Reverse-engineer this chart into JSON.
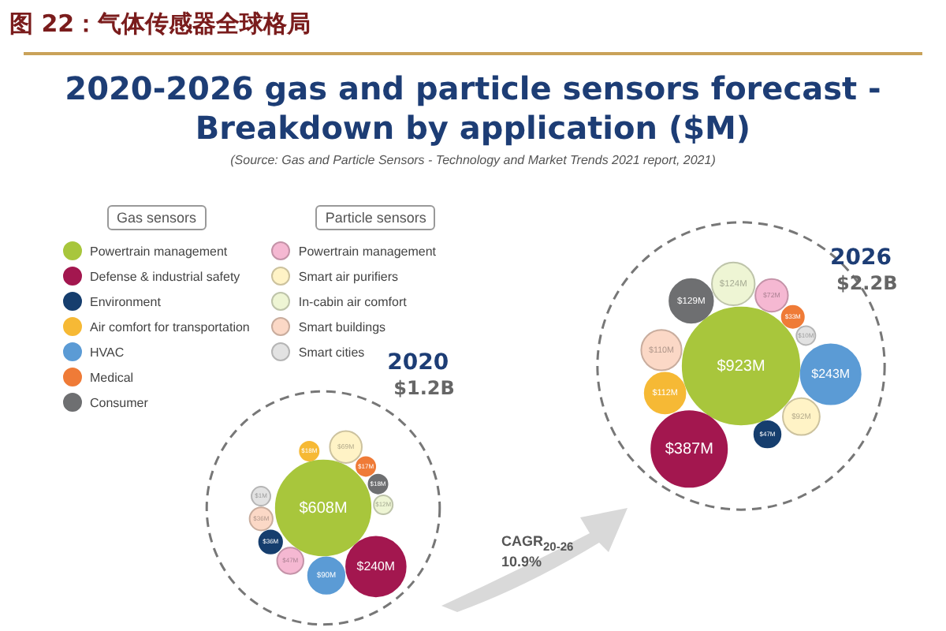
{
  "chart_data": {
    "type": "other",
    "title": "2020-2026 gas and particle sensors forecast - Breakdown by application ($M)",
    "annotations": [
      "图 22：气体传感器全球格局",
      "(Source: Gas and Particle Sensors - Technology and Market Trends 2021 report, 2021)",
      "Gas sensors",
      "Particle sensors",
      "CAGR$_{20-26}$ 10.9%"
    ],
    "categories": [
      "2020",
      "2026"
    ],
    "series": [
      {
        "name": "Powertrain management",
        "color": "#a8c63c",
        "values": [
          608,
          923
        ],
        "value_labels": [
          "$608M",
          "$923M"
        ]
      },
      {
        "name": "Defense & industrial safety",
        "color": "#a3174f",
        "values": [
          240,
          387
        ],
        "value_labels": [
          "$240M",
          "$387M"
        ]
      },
      {
        "name": "Environment",
        "color": "#163e6e",
        "values": [
          36,
          47
        ],
        "value_labels": [
          "$36M",
          "$47M"
        ]
      },
      {
        "name": "Air comfort for transportation",
        "color": "#f6b935",
        "values": [
          18,
          112
        ],
        "value_labels": [
          "$18M",
          "$112M"
        ]
      },
      {
        "name": "HVAC",
        "color": "#5b9bd5",
        "values": [
          90,
          243
        ],
        "value_labels": [
          "$90M",
          "$243M"
        ]
      },
      {
        "name": "Medical",
        "color": "#ef7b37",
        "values": [
          17,
          33
        ],
        "value_labels": [
          "$17M",
          "$33M"
        ]
      },
      {
        "name": "Consumer",
        "color": "#6e6f71",
        "values": [
          18,
          129
        ],
        "value_labels": [
          "$18M",
          "$129M"
        ]
      },
      {
        "name": "Powertrain management",
        "color": "#f5b8d2",
        "values": [
          47,
          72
        ],
        "value_labels": [
          "$47M",
          "$72M"
        ]
      },
      {
        "name": "Smart air purifiers",
        "color": "#fff3c6",
        "values": [
          69,
          92
        ],
        "value_labels": [
          "$69M",
          "$92M"
        ]
      },
      {
        "name": "In-cabin air comfort",
        "color": "#eef5d4",
        "values": [
          12,
          124
        ],
        "value_labels": [
          "$12M",
          "$124M"
        ]
      },
      {
        "name": "Smart buildings",
        "color": "#fbd8c6",
        "values": [
          36,
          110
        ],
        "value_labels": [
          "$36M",
          "$110M"
        ]
      },
      {
        "name": "Smart cities",
        "color": "#e2e2e2",
        "values": [
          1,
          10
        ],
        "value_labels": [
          "$1M",
          "$10M"
        ]
      }
    ],
    "totals": [
      "$1.2B",
      "$2.2B"
    ],
    "legend": "top left"
  }
}
